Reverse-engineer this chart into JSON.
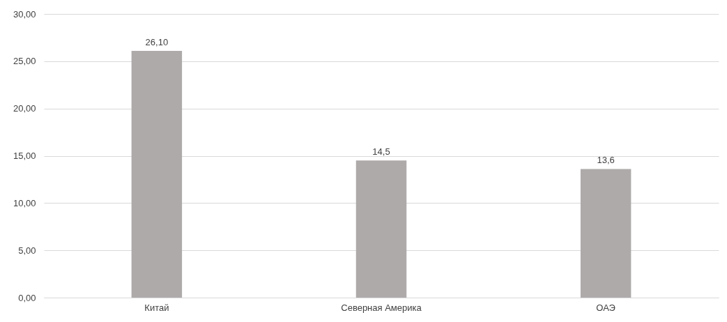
{
  "chart_data": {
    "type": "bar",
    "categories": [
      "Китай",
      "Северная Америка",
      "ОАЭ"
    ],
    "values": [
      26.1,
      14.5,
      13.6
    ],
    "color": "#aeaaaa",
    "value_labels": [
      "26,10",
      "14,5",
      "13,6"
    ],
    "ylim": [
      0,
      30
    ],
    "yticks": [
      {
        "value": 0,
        "label": "0,00"
      },
      {
        "value": 5,
        "label": "5,00"
      },
      {
        "value": 10,
        "label": "10,00"
      },
      {
        "value": 15,
        "label": "15,00"
      },
      {
        "value": 20,
        "label": "20,00"
      },
      {
        "value": 25,
        "label": "25,00"
      },
      {
        "value": 30,
        "label": "30,00"
      }
    ],
    "grid": "y"
  }
}
